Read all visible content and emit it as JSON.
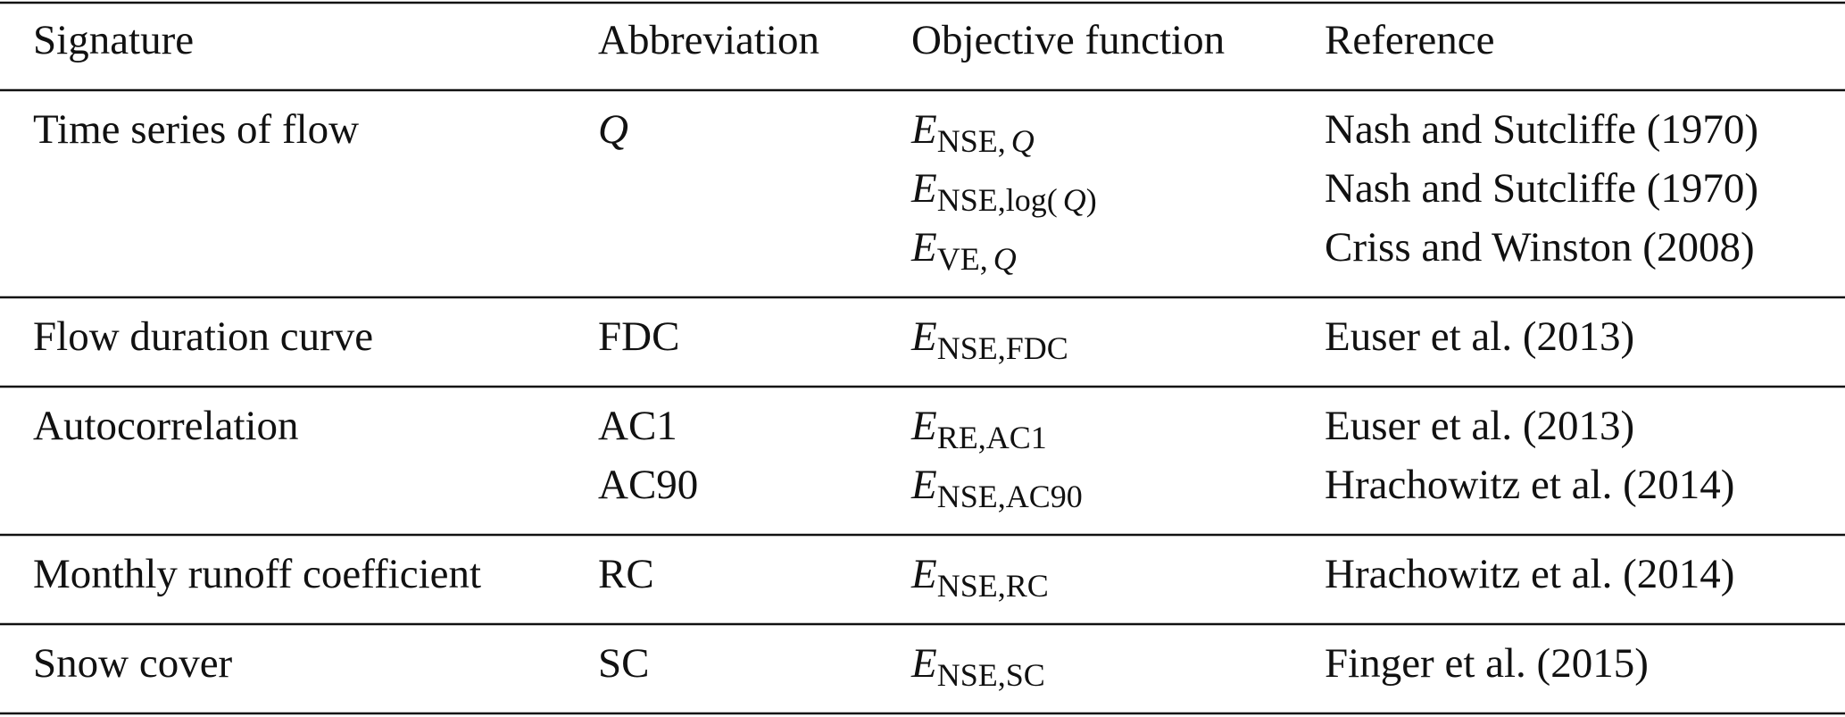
{
  "table": {
    "headers": [
      "Signature",
      "Abbreviation",
      "Objective function",
      "Reference"
    ],
    "rows": [
      {
        "signature": "Time series of flow",
        "abbreviations": [
          "Q"
        ],
        "italic_abbreviation": true,
        "objectives": [
          {
            "symbol": "E",
            "subscript": [
              {
                "text": "NSE,"
              },
              {
                "text": "Q",
                "italic": true
              }
            ]
          },
          {
            "symbol": "E",
            "subscript": [
              {
                "text": "NSE,log("
              },
              {
                "text": "Q",
                "italic": true
              },
              {
                "text": ")"
              }
            ]
          },
          {
            "symbol": "E",
            "subscript": [
              {
                "text": "VE,"
              },
              {
                "text": "Q",
                "italic": true
              }
            ]
          }
        ],
        "references": [
          "Nash and Sutcliffe (1970)",
          "Nash and Sutcliffe (1970)",
          "Criss and Winston (2008)"
        ]
      },
      {
        "signature": "Flow duration curve",
        "abbreviations": [
          "FDC"
        ],
        "objectives": [
          {
            "symbol": "E",
            "subscript": [
              {
                "text": "NSE,FDC"
              }
            ]
          }
        ],
        "references": [
          "Euser et al. (2013)"
        ]
      },
      {
        "signature": "Autocorrelation",
        "abbreviations": [
          "AC1",
          "AC90"
        ],
        "objectives": [
          {
            "symbol": "E",
            "subscript": [
              {
                "text": "RE,AC1"
              }
            ]
          },
          {
            "symbol": "E",
            "subscript": [
              {
                "text": "NSE,AC90"
              }
            ]
          }
        ],
        "references": [
          "Euser et al. (2013)",
          "Hrachowitz et al. (2014)"
        ]
      },
      {
        "signature": "Monthly runoff coefficient",
        "abbreviations": [
          "RC"
        ],
        "objectives": [
          {
            "symbol": "E",
            "subscript": [
              {
                "text": "NSE,RC"
              }
            ]
          }
        ],
        "references": [
          "Hrachowitz et al. (2014)"
        ]
      },
      {
        "signature": "Snow cover",
        "abbreviations": [
          "SC"
        ],
        "objectives": [
          {
            "symbol": "E",
            "subscript": [
              {
                "text": "NSE,SC"
              }
            ]
          }
        ],
        "references": [
          "Finger et al. (2015)"
        ]
      }
    ]
  }
}
